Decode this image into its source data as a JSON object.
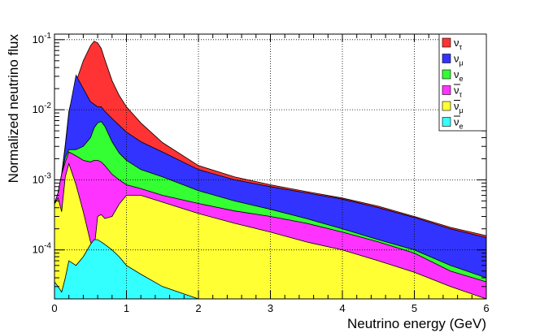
{
  "chart_data": {
    "type": "area",
    "stacked": true,
    "xlabel": "Neutrino energy  (GeV)",
    "ylabel": "Normalized neutrino flux",
    "xlim": [
      0,
      6
    ],
    "ylim": [
      2e-05,
      0.12
    ],
    "y_scale": "log",
    "grid": true,
    "legend_position": "top-right",
    "x_ticks": [
      "0",
      "1",
      "2",
      "3",
      "4",
      "5",
      "6"
    ],
    "y_ticks": [
      {
        "mant": "10",
        "exp": "-1",
        "value": 0.1
      },
      {
        "mant": "10",
        "exp": "-2",
        "value": 0.01
      },
      {
        "mant": "10",
        "exp": "-3",
        "value": 0.001
      },
      {
        "mant": "10",
        "exp": "-4",
        "value": 0.0001
      }
    ],
    "x": [
      0,
      0.05,
      0.1,
      0.15,
      0.2,
      0.3,
      0.4,
      0.5,
      0.55,
      0.6,
      0.65,
      0.7,
      0.8,
      0.9,
      1.0,
      1.2,
      1.5,
      2.0,
      2.5,
      3.0,
      3.5,
      4.0,
      4.5,
      5.0,
      5.5,
      6.0
    ],
    "stack_order": [
      "anti_nu_e",
      "anti_nu_mu",
      "anti_nu_tau",
      "nu_e",
      "nu_mu",
      "nu_tau"
    ],
    "series": [
      {
        "key": "nu_tau",
        "base": "ν",
        "sub": "τ",
        "bar": false,
        "color": "#ff3333",
        "cumulative": [
          0.00045,
          0.00065,
          0.0012,
          0.0032,
          0.0095,
          0.025,
          0.05,
          0.082,
          0.095,
          0.09,
          0.075,
          0.052,
          0.026,
          0.016,
          0.011,
          0.0065,
          0.0034,
          0.0016,
          0.0011,
          0.00085,
          0.00068,
          0.00055,
          0.00042,
          0.0003,
          0.00021,
          0.00016
        ]
      },
      {
        "key": "nu_mu",
        "base": "ν",
        "sub": "μ",
        "bar": false,
        "color": "#3333ff",
        "cumulative": [
          0.00045,
          0.00065,
          0.0012,
          0.003,
          0.009,
          0.031,
          0.02,
          0.013,
          0.012,
          0.011,
          0.011,
          0.0095,
          0.0075,
          0.006,
          0.0048,
          0.0035,
          0.0025,
          0.0014,
          0.001,
          0.0008,
          0.00065,
          0.00053,
          0.0004,
          0.00029,
          0.0002,
          0.00015
        ]
      },
      {
        "key": "nu_e",
        "base": "ν",
        "sub": "e",
        "bar": false,
        "color": "#33ff33",
        "cumulative": [
          0.00045,
          0.00065,
          0.0012,
          0.0021,
          0.0027,
          0.0027,
          0.003,
          0.004,
          0.0055,
          0.0065,
          0.0068,
          0.0058,
          0.0035,
          0.0024,
          0.0019,
          0.0014,
          0.0011,
          0.0007,
          0.0005,
          0.00038,
          0.00028,
          0.0002,
          0.00014,
          0.0001,
          6e-05,
          4e-05
        ]
      },
      {
        "key": "anti_nu_tau",
        "base": "ν",
        "sub": "τ",
        "bar": true,
        "color": "#ff33ff",
        "cumulative": [
          0.00045,
          0.00065,
          0.0012,
          0.0018,
          0.0025,
          0.0022,
          0.0019,
          0.0018,
          0.0019,
          0.0019,
          0.0018,
          0.0016,
          0.0012,
          0.001,
          0.00085,
          0.00075,
          0.0006,
          0.00046,
          0.00036,
          0.0003,
          0.00024,
          0.00018,
          0.00013,
          9e-05,
          5e-05,
          3.5e-05
        ]
      },
      {
        "key": "anti_nu_mu",
        "base": "ν",
        "sub": "μ",
        "bar": true,
        "color": "#ffff33",
        "cumulative": [
          0.00045,
          0.00055,
          0.00035,
          0.0011,
          0.0017,
          0.00085,
          0.00035,
          0.00013,
          0.0001,
          0.0003,
          0.00032,
          0.00028,
          0.0003,
          0.00045,
          0.0006,
          0.0006,
          0.00048,
          0.00033,
          0.00024,
          0.00018,
          0.00013,
          0.0001,
          7e-05,
          4.8e-05,
          3e-05,
          2e-05
        ]
      },
      {
        "key": "anti_nu_e",
        "base": "ν",
        "sub": "e",
        "bar": true,
        "color": "#33ffff",
        "cumulative": [
          3.5e-05,
          3e-05,
          2.5e-05,
          4e-05,
          7e-05,
          6e-05,
          8e-05,
          0.00012,
          0.00014,
          0.00014,
          0.00013,
          0.00012,
          0.0001,
          8e-05,
          6e-05,
          4.5e-05,
          3e-05,
          2e-05,
          2e-05,
          2e-05,
          2e-05,
          2e-05,
          2e-05,
          2e-05,
          2e-05,
          2e-05
        ]
      }
    ]
  }
}
